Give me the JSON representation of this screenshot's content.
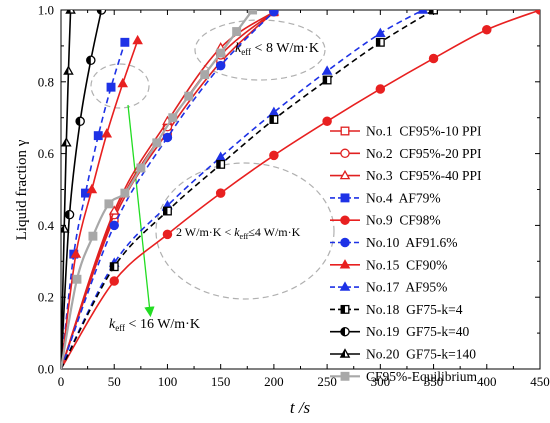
{
  "chart_data": {
    "type": "line",
    "xlabel": "t /s",
    "ylabel": "Liquid fraction γ",
    "xlim": [
      0,
      450
    ],
    "ylim": [
      0,
      1.0
    ],
    "xticks": [
      "0",
      "50",
      "100",
      "150",
      "200",
      "250",
      "300",
      "350",
      "400",
      "450"
    ],
    "yticks": [
      "0.0",
      "0.2",
      "0.4",
      "0.6",
      "0.8",
      "1.0"
    ],
    "grid": false,
    "legend_position": "right-center",
    "series": [
      {
        "name": "No.1  CF95%-10 PPI",
        "color": "#e02020",
        "marker": "square-open",
        "dash": false,
        "points": [
          [
            0,
            0
          ],
          [
            50,
            0.42
          ],
          [
            100,
            0.66
          ],
          [
            150,
            0.855
          ],
          [
            200,
            0.995
          ]
        ]
      },
      {
        "name": "No.2  CF95%-20 PPI",
        "color": "#e02020",
        "marker": "circle-open",
        "dash": false,
        "points": [
          [
            0,
            0
          ],
          [
            50,
            0.43
          ],
          [
            100,
            0.675
          ],
          [
            150,
            0.875
          ],
          [
            200,
            0.995
          ]
        ]
      },
      {
        "name": "No.3  CF95%-40 PPI",
        "color": "#e02020",
        "marker": "triangle-open",
        "dash": false,
        "points": [
          [
            0,
            0
          ],
          [
            50,
            0.44
          ],
          [
            100,
            0.69
          ],
          [
            150,
            0.895
          ],
          [
            200,
            0.995
          ]
        ]
      },
      {
        "name": "No.4  AF79%",
        "color": "#1e32e6",
        "marker": "square",
        "dash": true,
        "points": [
          [
            0,
            0
          ],
          [
            12,
            0.32
          ],
          [
            23,
            0.49
          ],
          [
            35,
            0.65
          ],
          [
            47,
            0.785
          ],
          [
            60,
            0.91
          ]
        ]
      },
      {
        "name": "No.9  CF98%",
        "color": "#e82020",
        "marker": "circle",
        "dash": false,
        "points": [
          [
            0,
            0
          ],
          [
            50,
            0.245
          ],
          [
            100,
            0.375
          ],
          [
            150,
            0.49
          ],
          [
            200,
            0.595
          ],
          [
            250,
            0.69
          ],
          [
            300,
            0.78
          ],
          [
            350,
            0.865
          ],
          [
            400,
            0.945
          ],
          [
            450,
            1.0
          ]
        ]
      },
      {
        "name": "No.10  AF91.6%",
        "color": "#1e32e6",
        "marker": "circle",
        "dash": true,
        "points": [
          [
            0,
            0
          ],
          [
            50,
            0.4
          ],
          [
            100,
            0.645
          ],
          [
            150,
            0.845
          ],
          [
            200,
            0.995
          ]
        ]
      },
      {
        "name": "No.15  CF90%",
        "color": "#e82020",
        "marker": "triangle",
        "dash": false,
        "points": [
          [
            0,
            0
          ],
          [
            14,
            0.32
          ],
          [
            29,
            0.5
          ],
          [
            43,
            0.655
          ],
          [
            58,
            0.795
          ],
          [
            72,
            0.915
          ]
        ]
      },
      {
        "name": "No.17  AF95%",
        "color": "#1e32e6",
        "marker": "triangle",
        "dash": true,
        "points": [
          [
            0,
            0
          ],
          [
            50,
            0.295
          ],
          [
            100,
            0.455
          ],
          [
            150,
            0.59
          ],
          [
            200,
            0.715
          ],
          [
            250,
            0.83
          ],
          [
            300,
            0.935
          ],
          [
            340,
            1.0
          ]
        ]
      },
      {
        "name": "No.18  GF75-k=4",
        "color": "#000000",
        "marker": "square-half",
        "dash": true,
        "points": [
          [
            0,
            0
          ],
          [
            50,
            0.285
          ],
          [
            100,
            0.44
          ],
          [
            150,
            0.57
          ],
          [
            200,
            0.695
          ],
          [
            250,
            0.805
          ],
          [
            300,
            0.91
          ],
          [
            350,
            1.0
          ]
        ]
      },
      {
        "name": "No.19  GF75-k=40",
        "color": "#000000",
        "marker": "circle-half",
        "dash": false,
        "points": [
          [
            0,
            0
          ],
          [
            8,
            0.43
          ],
          [
            18,
            0.69
          ],
          [
            28,
            0.86
          ],
          [
            38,
            1.0
          ]
        ]
      },
      {
        "name": "No.20  GF75-k=140",
        "color": "#000000",
        "marker": "triangle-half",
        "dash": false,
        "points": [
          [
            0,
            0
          ],
          [
            3,
            0.39
          ],
          [
            5,
            0.63
          ],
          [
            7,
            0.83
          ],
          [
            9,
            1.0
          ]
        ]
      },
      {
        "name": "CF95%-Equilibrium",
        "color": "#a8a8a8",
        "marker": "square",
        "dash": false,
        "points": [
          [
            0,
            0
          ],
          [
            15,
            0.25
          ],
          [
            30,
            0.37
          ],
          [
            45,
            0.46
          ],
          [
            60,
            0.49
          ],
          [
            75,
            0.56
          ],
          [
            90,
            0.63
          ],
          [
            105,
            0.7
          ],
          [
            120,
            0.76
          ],
          [
            135,
            0.82
          ],
          [
            150,
            0.88
          ],
          [
            165,
            0.94
          ],
          [
            180,
            1.0
          ]
        ]
      }
    ],
    "annotations": {
      "top": "k_eff < 8 W/m·K",
      "middle": "2 W/m·K < k_eff ≤ 4 W/m·K",
      "bottom": "k_eff < 16 W/m·K"
    }
  },
  "colors": {
    "axis": "#000000",
    "ellipse": "#b0b0b0",
    "arrow": "#22dd22"
  }
}
